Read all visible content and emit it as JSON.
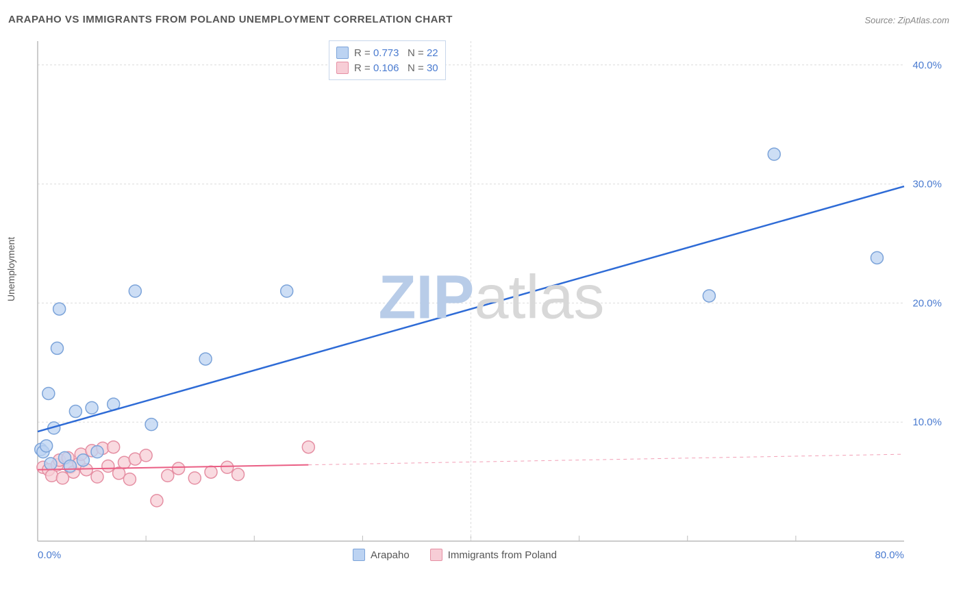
{
  "title": "ARAPAHO VS IMMIGRANTS FROM POLAND UNEMPLOYMENT CORRELATION CHART",
  "source_label": "Source: ",
  "source_name": "ZipAtlas.com",
  "ylabel": "Unemployment",
  "watermark_a": "ZIP",
  "watermark_b": "atlas",
  "chart": {
    "type": "scatter",
    "background_color": "#ffffff",
    "grid_color": "#dcdcdc",
    "grid_dash": "3,3",
    "axis_color": "#bcbcbc",
    "xlim": [
      0,
      80
    ],
    "ylim": [
      0,
      42
    ],
    "x_ticks_major": [
      0,
      80
    ],
    "x_ticks_minor": [
      10,
      20,
      30,
      40,
      50,
      60,
      70
    ],
    "x_tick_labels": {
      "0": "0.0%",
      "80": "80.0%"
    },
    "y_ticks": [
      10,
      20,
      30,
      40
    ],
    "y_tick_labels": {
      "10": "10.0%",
      "20": "20.0%",
      "30": "30.0%",
      "40": "40.0%"
    },
    "tick_label_color": "#4a7bd0",
    "tick_label_fontsize": 15,
    "marker_radius": 9,
    "marker_stroke_width": 1.5,
    "series": [
      {
        "name": "Arapaho",
        "marker_fill": "#bcd3f2",
        "marker_stroke": "#7ba3d9",
        "line_color": "#2e6bd6",
        "line_width": 2.5,
        "R": "0.773",
        "N": "22",
        "trend": {
          "x1": 0,
          "y1": 9.2,
          "x2": 80,
          "y2": 29.8,
          "solid_until_x": 80
        },
        "points": [
          [
            0.3,
            7.7
          ],
          [
            0.5,
            7.5
          ],
          [
            0.8,
            8.0
          ],
          [
            1.0,
            12.4
          ],
          [
            1.2,
            6.5
          ],
          [
            1.5,
            9.5
          ],
          [
            1.8,
            16.2
          ],
          [
            2.0,
            19.5
          ],
          [
            2.5,
            7.0
          ],
          [
            3.0,
            6.3
          ],
          [
            3.5,
            10.9
          ],
          [
            4.2,
            6.8
          ],
          [
            5.0,
            11.2
          ],
          [
            5.5,
            7.5
          ],
          [
            7.0,
            11.5
          ],
          [
            9.0,
            21.0
          ],
          [
            10.5,
            9.8
          ],
          [
            15.5,
            15.3
          ],
          [
            23.0,
            21.0
          ],
          [
            62.0,
            20.6
          ],
          [
            68.0,
            32.5
          ],
          [
            77.5,
            23.8
          ]
        ]
      },
      {
        "name": "Immigrants from Poland",
        "marker_fill": "#f7cdd6",
        "marker_stroke": "#e58fa3",
        "line_color": "#ea5e84",
        "line_width": 2,
        "R": "0.106",
        "N": "30",
        "trend": {
          "x1": 0,
          "y1": 6.0,
          "x2": 80,
          "y2": 7.3,
          "solid_until_x": 25
        },
        "points": [
          [
            0.5,
            6.2
          ],
          [
            1.0,
            6.0
          ],
          [
            1.3,
            5.5
          ],
          [
            1.8,
            6.4
          ],
          [
            2.0,
            6.8
          ],
          [
            2.3,
            5.3
          ],
          [
            2.8,
            7.0
          ],
          [
            3.0,
            6.2
          ],
          [
            3.3,
            5.8
          ],
          [
            3.8,
            6.5
          ],
          [
            4.0,
            7.3
          ],
          [
            4.5,
            6.0
          ],
          [
            5.0,
            7.6
          ],
          [
            5.5,
            5.4
          ],
          [
            6.0,
            7.8
          ],
          [
            6.5,
            6.3
          ],
          [
            7.0,
            7.9
          ],
          [
            7.5,
            5.7
          ],
          [
            8.0,
            6.6
          ],
          [
            8.5,
            5.2
          ],
          [
            9.0,
            6.9
          ],
          [
            10.0,
            7.2
          ],
          [
            11.0,
            3.4
          ],
          [
            12.0,
            5.5
          ],
          [
            13.0,
            6.1
          ],
          [
            14.5,
            5.3
          ],
          [
            16.0,
            5.8
          ],
          [
            17.5,
            6.2
          ],
          [
            18.5,
            5.6
          ],
          [
            25.0,
            7.9
          ]
        ]
      }
    ]
  },
  "legend_top": {
    "R_label": "R =",
    "N_label": "N ="
  },
  "legend_bottom": {
    "items": [
      "Arapaho",
      "Immigrants from Poland"
    ]
  },
  "watermark_colors": {
    "a": "#b8cce8",
    "b": "#d8d8d8"
  }
}
